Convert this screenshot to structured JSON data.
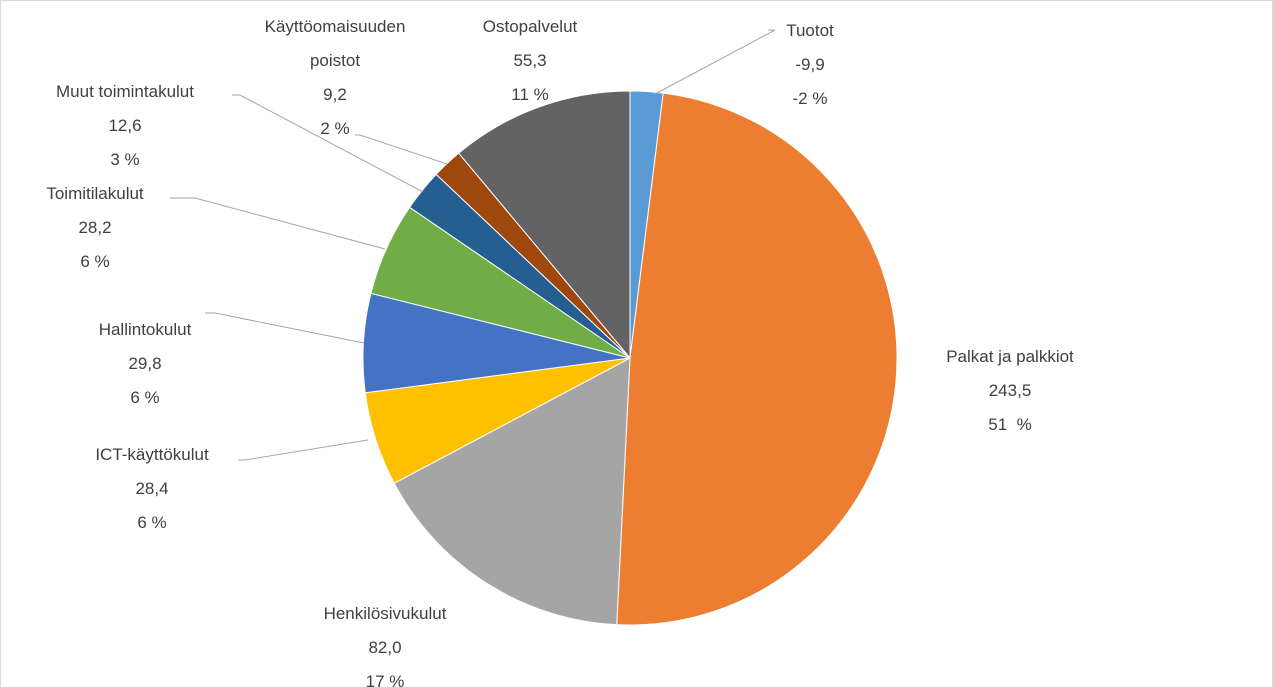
{
  "chart_data": {
    "type": "pie",
    "categories": [
      "Tuotot",
      "Palkat ja palkkiot",
      "Henkilösivukulut",
      "ICT-käyttökulut",
      "Hallintokulut",
      "Toimitilakulut",
      "Muut toimintakulut",
      "Käyttöomaisuuden poistot",
      "Ostopalvelut"
    ],
    "values": [
      -9.9,
      243.5,
      82.0,
      28.4,
      29.8,
      28.2,
      12.6,
      9.2,
      55.3
    ],
    "value_labels": [
      "-9,9",
      "243,5",
      "82,0",
      "28,4",
      "29,8",
      "28,2",
      "12,6",
      "9,2",
      "55,3"
    ],
    "percents": [
      -2,
      51,
      17,
      6,
      6,
      6,
      3,
      2,
      11
    ],
    "percent_labels": [
      "-2 %",
      "51  %",
      "17 %",
      "6 %",
      "6 %",
      "6 %",
      "3 %",
      "2 %",
      "11 %"
    ],
    "colors": [
      "#5b9bd5",
      "#ed7d31",
      "#a5a5a5",
      "#ffc000",
      "#4472c4",
      "#70ad47",
      "#255e91",
      "#9e480e",
      "#636363"
    ]
  }
}
